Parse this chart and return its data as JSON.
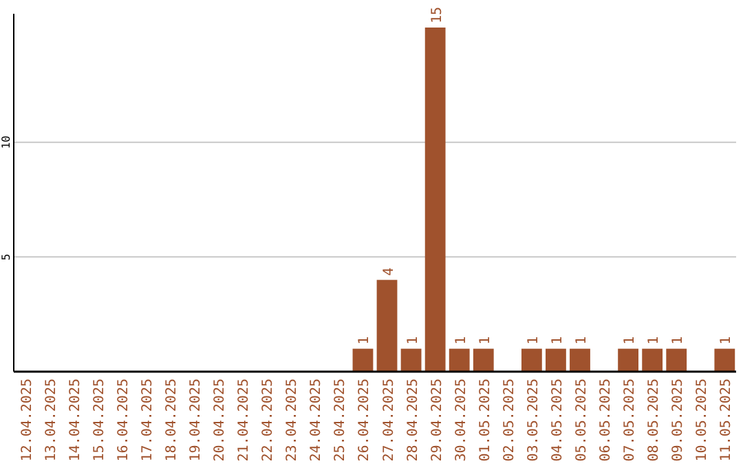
{
  "chart_data": {
    "type": "bar",
    "categories": [
      "12.04.2025",
      "13.04.2025",
      "14.04.2025",
      "15.04.2025",
      "16.04.2025",
      "17.04.2025",
      "18.04.2025",
      "19.04.2025",
      "20.04.2025",
      "21.04.2025",
      "22.04.2025",
      "23.04.2025",
      "24.04.2025",
      "25.04.2025",
      "26.04.2025",
      "27.04.2025",
      "28.04.2025",
      "29.04.2025",
      "30.04.2025",
      "01.05.2025",
      "02.05.2025",
      "03.05.2025",
      "04.05.2025",
      "05.05.2025",
      "06.05.2025",
      "07.05.2025",
      "08.05.2025",
      "09.05.2025",
      "10.05.2025",
      "11.05.2025"
    ],
    "values": [
      null,
      null,
      null,
      null,
      null,
      null,
      null,
      null,
      null,
      null,
      null,
      null,
      null,
      null,
      1,
      4,
      1,
      15,
      1,
      1,
      null,
      1,
      1,
      1,
      null,
      1,
      1,
      1,
      null,
      1
    ],
    "color": "#a0522d",
    "ylim": [
      0,
      15.6
    ],
    "yticks": [
      5,
      10
    ],
    "grid": "y",
    "data_labels": true
  }
}
